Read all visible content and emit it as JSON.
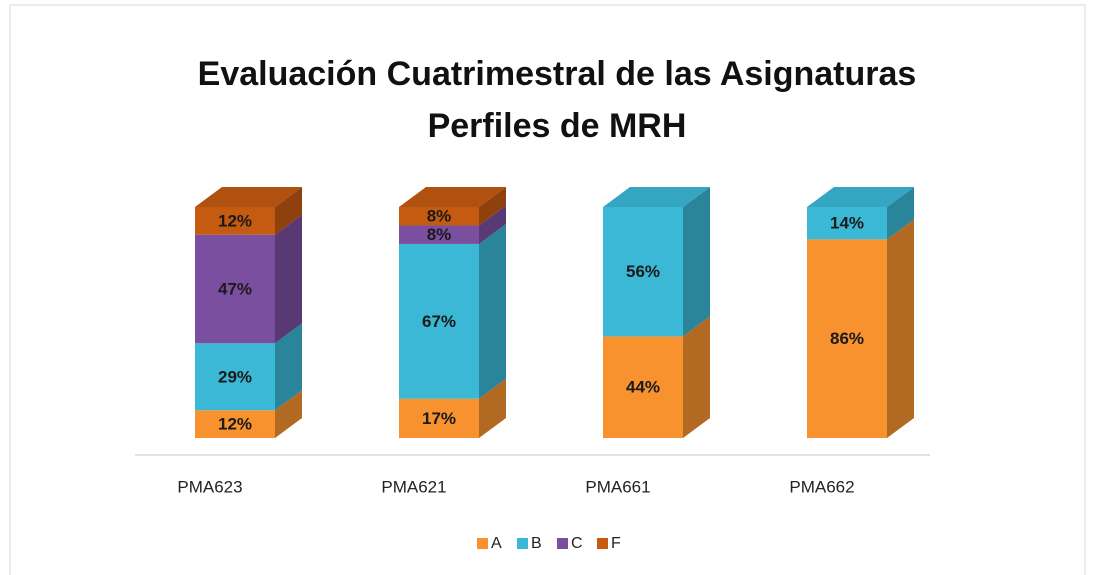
{
  "chart_data": {
    "type": "stacked_bar_3d",
    "title": [
      "Evaluación Cuatrimestral de las Asignaturas",
      "Perfiles de MRH"
    ],
    "categories": [
      "PMA623",
      "PMA621",
      "PMA661",
      "PMA662"
    ],
    "ylim": [
      0,
      100
    ],
    "series": [
      {
        "name": "A",
        "color": "#f7922e",
        "values": [
          12,
          17,
          44,
          86
        ],
        "value_labels": [
          "12%",
          "17%",
          "44%",
          "86%"
        ]
      },
      {
        "name": "B",
        "color": "#3bb8d6",
        "values": [
          29,
          67,
          56,
          14
        ],
        "value_labels": [
          "29%",
          "67%",
          "56%",
          "14%"
        ]
      },
      {
        "name": "C",
        "color": "#7b4fa0",
        "values": [
          47,
          8,
          0,
          0
        ],
        "value_labels": [
          "47%",
          "8%",
          null,
          null
        ]
      },
      {
        "name": "F",
        "color": "#c55a11",
        "values": [
          12,
          8,
          0,
          0
        ],
        "value_labels": [
          "12%",
          "8%",
          null,
          null
        ]
      }
    ],
    "legend": "bottom"
  }
}
